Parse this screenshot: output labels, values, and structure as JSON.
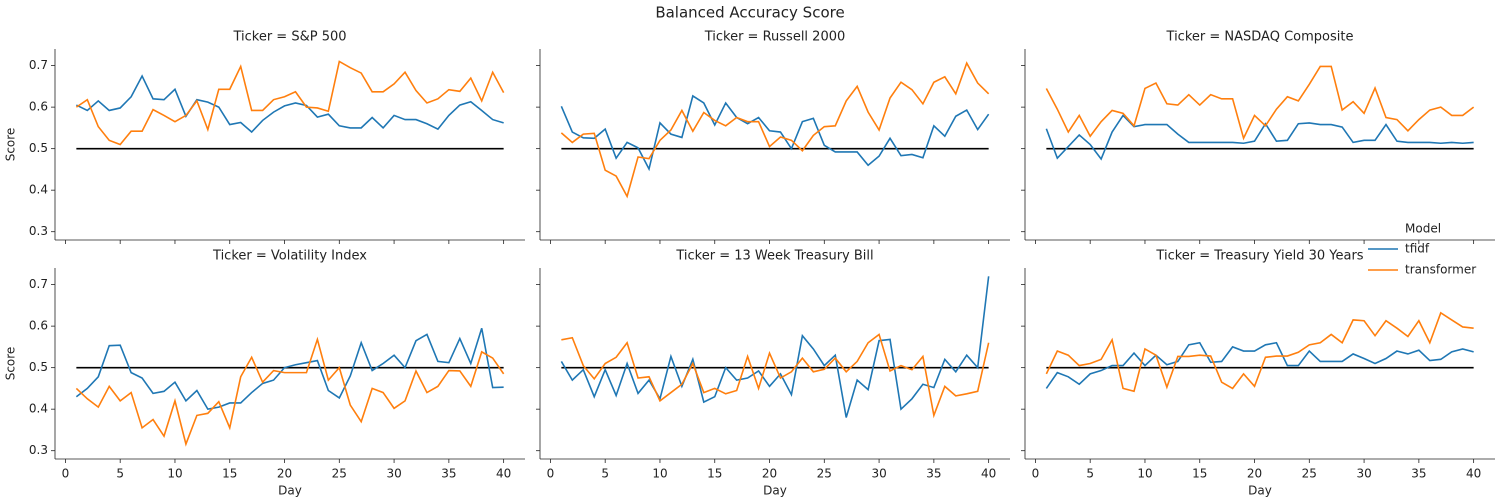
{
  "chart_data": {
    "type": "line",
    "title": "Balanced Accuracy Score",
    "x_label": "Day",
    "y_label": "Score",
    "legend_title": "Model",
    "legend": "right",
    "x": [
      1,
      2,
      3,
      4,
      5,
      6,
      7,
      8,
      9,
      10,
      11,
      12,
      13,
      14,
      15,
      16,
      17,
      18,
      19,
      20,
      21,
      22,
      23,
      24,
      25,
      26,
      27,
      28,
      29,
      30,
      31,
      32,
      33,
      34,
      35,
      36,
      37,
      38,
      39,
      40
    ],
    "xlim": [
      -0.95,
      41.95
    ],
    "xticks": [
      0,
      5,
      10,
      15,
      20,
      25,
      30,
      35,
      40
    ],
    "ylim": [
      0.28,
      0.74
    ],
    "yticks": [
      0.3,
      0.4,
      0.5,
      0.6,
      0.7
    ],
    "reference_line": {
      "value": 0.5,
      "color": "#000000"
    },
    "series": [
      {
        "name": "tfidf",
        "color": "#1f77b4"
      },
      {
        "name": "transformer",
        "color": "#ff7f0e"
      }
    ],
    "facets": [
      {
        "title": "Ticker = S&P 500",
        "series": [
          {
            "values": [
              0.605,
              0.592,
              0.615,
              0.592,
              0.598,
              0.625,
              0.675,
              0.62,
              0.618,
              0.643,
              0.578,
              0.618,
              0.612,
              0.6,
              0.558,
              0.563,
              0.54,
              0.568,
              0.588,
              0.603,
              0.61,
              0.604,
              0.576,
              0.583,
              0.555,
              0.55,
              0.55,
              0.575,
              0.55,
              0.58,
              0.57,
              0.57,
              0.56,
              0.547,
              0.58,
              0.605,
              0.613,
              0.592,
              0.57,
              0.562
            ]
          },
          {
            "values": [
              0.6,
              0.618,
              0.553,
              0.52,
              0.51,
              0.542,
              0.542,
              0.594,
              0.58,
              0.565,
              0.58,
              0.615,
              0.546,
              0.643,
              0.643,
              0.698,
              0.592,
              0.592,
              0.618,
              0.625,
              0.637,
              0.6,
              0.598,
              0.59,
              0.71,
              0.695,
              0.682,
              0.637,
              0.637,
              0.656,
              0.684,
              0.64,
              0.61,
              0.62,
              0.642,
              0.638,
              0.67,
              0.615,
              0.684,
              0.635
            ]
          }
        ]
      },
      {
        "title": "Ticker = Russell 2000",
        "series": [
          {
            "values": [
              0.602,
              0.54,
              0.526,
              0.525,
              0.547,
              0.477,
              0.515,
              0.502,
              0.451,
              0.562,
              0.535,
              0.527,
              0.627,
              0.61,
              0.557,
              0.61,
              0.575,
              0.56,
              0.575,
              0.543,
              0.54,
              0.5,
              0.565,
              0.573,
              0.508,
              0.492,
              0.492,
              0.492,
              0.46,
              0.482,
              0.525,
              0.483,
              0.486,
              0.478,
              0.555,
              0.53,
              0.578,
              0.593,
              0.546,
              0.583
            ]
          },
          {
            "values": [
              0.538,
              0.515,
              0.535,
              0.537,
              0.448,
              0.434,
              0.385,
              0.48,
              0.476,
              0.52,
              0.545,
              0.592,
              0.542,
              0.587,
              0.568,
              0.555,
              0.575,
              0.565,
              0.565,
              0.505,
              0.528,
              0.52,
              0.495,
              0.532,
              0.553,
              0.555,
              0.615,
              0.65,
              0.588,
              0.545,
              0.622,
              0.66,
              0.642,
              0.608,
              0.66,
              0.673,
              0.632,
              0.706,
              0.658,
              0.632
            ]
          }
        ]
      },
      {
        "title": "Ticker = NASDAQ Composite",
        "series": [
          {
            "values": [
              0.548,
              0.477,
              0.505,
              0.533,
              0.51,
              0.475,
              0.54,
              0.58,
              0.553,
              0.558,
              0.558,
              0.558,
              0.535,
              0.515,
              0.515,
              0.515,
              0.515,
              0.515,
              0.513,
              0.518,
              0.56,
              0.518,
              0.52,
              0.56,
              0.562,
              0.558,
              0.558,
              0.552,
              0.515,
              0.52,
              0.52,
              0.558,
              0.518,
              0.515,
              0.515,
              0.515,
              0.513,
              0.515,
              0.513,
              0.515
            ]
          },
          {
            "values": [
              0.645,
              0.595,
              0.54,
              0.58,
              0.53,
              0.565,
              0.592,
              0.585,
              0.555,
              0.645,
              0.658,
              0.608,
              0.605,
              0.63,
              0.605,
              0.63,
              0.62,
              0.62,
              0.525,
              0.58,
              0.555,
              0.595,
              0.625,
              0.615,
              0.655,
              0.698,
              0.698,
              0.593,
              0.613,
              0.585,
              0.646,
              0.575,
              0.57,
              0.543,
              0.57,
              0.593,
              0.6,
              0.58,
              0.58,
              0.6
            ]
          }
        ]
      },
      {
        "title": "Ticker = Volatility Index",
        "series": [
          {
            "values": [
              0.43,
              0.45,
              0.478,
              0.553,
              0.554,
              0.488,
              0.475,
              0.438,
              0.443,
              0.465,
              0.42,
              0.445,
              0.4,
              0.405,
              0.415,
              0.415,
              0.44,
              0.462,
              0.47,
              0.5,
              0.507,
              0.512,
              0.517,
              0.445,
              0.427,
              0.48,
              0.56,
              0.493,
              0.51,
              0.53,
              0.5,
              0.565,
              0.58,
              0.515,
              0.512,
              0.57,
              0.51,
              0.595,
              0.452,
              0.453
            ]
          },
          {
            "values": [
              0.45,
              0.425,
              0.405,
              0.455,
              0.42,
              0.44,
              0.355,
              0.375,
              0.335,
              0.42,
              0.316,
              0.385,
              0.39,
              0.418,
              0.355,
              0.478,
              0.525,
              0.465,
              0.493,
              0.488,
              0.488,
              0.488,
              0.568,
              0.47,
              0.5,
              0.41,
              0.37,
              0.45,
              0.44,
              0.402,
              0.42,
              0.492,
              0.44,
              0.455,
              0.493,
              0.492,
              0.455,
              0.538,
              0.523,
              0.485
            ]
          }
        ]
      },
      {
        "title": "Ticker = 13 Week Treasury Bill",
        "series": [
          {
            "values": [
              0.515,
              0.47,
              0.495,
              0.43,
              0.495,
              0.433,
              0.51,
              0.438,
              0.47,
              0.425,
              0.527,
              0.455,
              0.52,
              0.417,
              0.43,
              0.5,
              0.47,
              0.475,
              0.492,
              0.455,
              0.485,
              0.435,
              0.577,
              0.545,
              0.505,
              0.53,
              0.38,
              0.47,
              0.447,
              0.565,
              0.568,
              0.4,
              0.425,
              0.46,
              0.452,
              0.52,
              0.49,
              0.53,
              0.5,
              0.72
            ]
          },
          {
            "values": [
              0.567,
              0.572,
              0.505,
              0.473,
              0.51,
              0.525,
              0.56,
              0.475,
              0.478,
              0.42,
              0.44,
              0.46,
              0.51,
              0.44,
              0.45,
              0.437,
              0.445,
              0.527,
              0.45,
              0.535,
              0.475,
              0.49,
              0.523,
              0.49,
              0.496,
              0.523,
              0.49,
              0.515,
              0.56,
              0.58,
              0.492,
              0.505,
              0.495,
              0.527,
              0.385,
              0.455,
              0.432,
              0.437,
              0.443,
              0.56
            ]
          }
        ]
      },
      {
        "title": "Ticker = Treasury Yield 30 Years",
        "series": [
          {
            "values": [
              0.45,
              0.488,
              0.478,
              0.46,
              0.485,
              0.493,
              0.505,
              0.505,
              0.535,
              0.505,
              0.53,
              0.507,
              0.515,
              0.555,
              0.56,
              0.513,
              0.515,
              0.55,
              0.54,
              0.54,
              0.555,
              0.56,
              0.505,
              0.505,
              0.54,
              0.515,
              0.515,
              0.515,
              0.533,
              0.522,
              0.51,
              0.522,
              0.54,
              0.533,
              0.542,
              0.517,
              0.52,
              0.538,
              0.545,
              0.538
            ]
          },
          {
            "values": [
              0.485,
              0.54,
              0.53,
              0.505,
              0.51,
              0.52,
              0.567,
              0.45,
              0.443,
              0.545,
              0.53,
              0.453,
              0.527,
              0.527,
              0.53,
              0.528,
              0.465,
              0.45,
              0.485,
              0.455,
              0.525,
              0.528,
              0.528,
              0.537,
              0.555,
              0.56,
              0.58,
              0.56,
              0.615,
              0.613,
              0.577,
              0.613,
              0.595,
              0.575,
              0.613,
              0.56,
              0.632,
              0.615,
              0.598,
              0.595
            ]
          }
        ]
      }
    ]
  }
}
